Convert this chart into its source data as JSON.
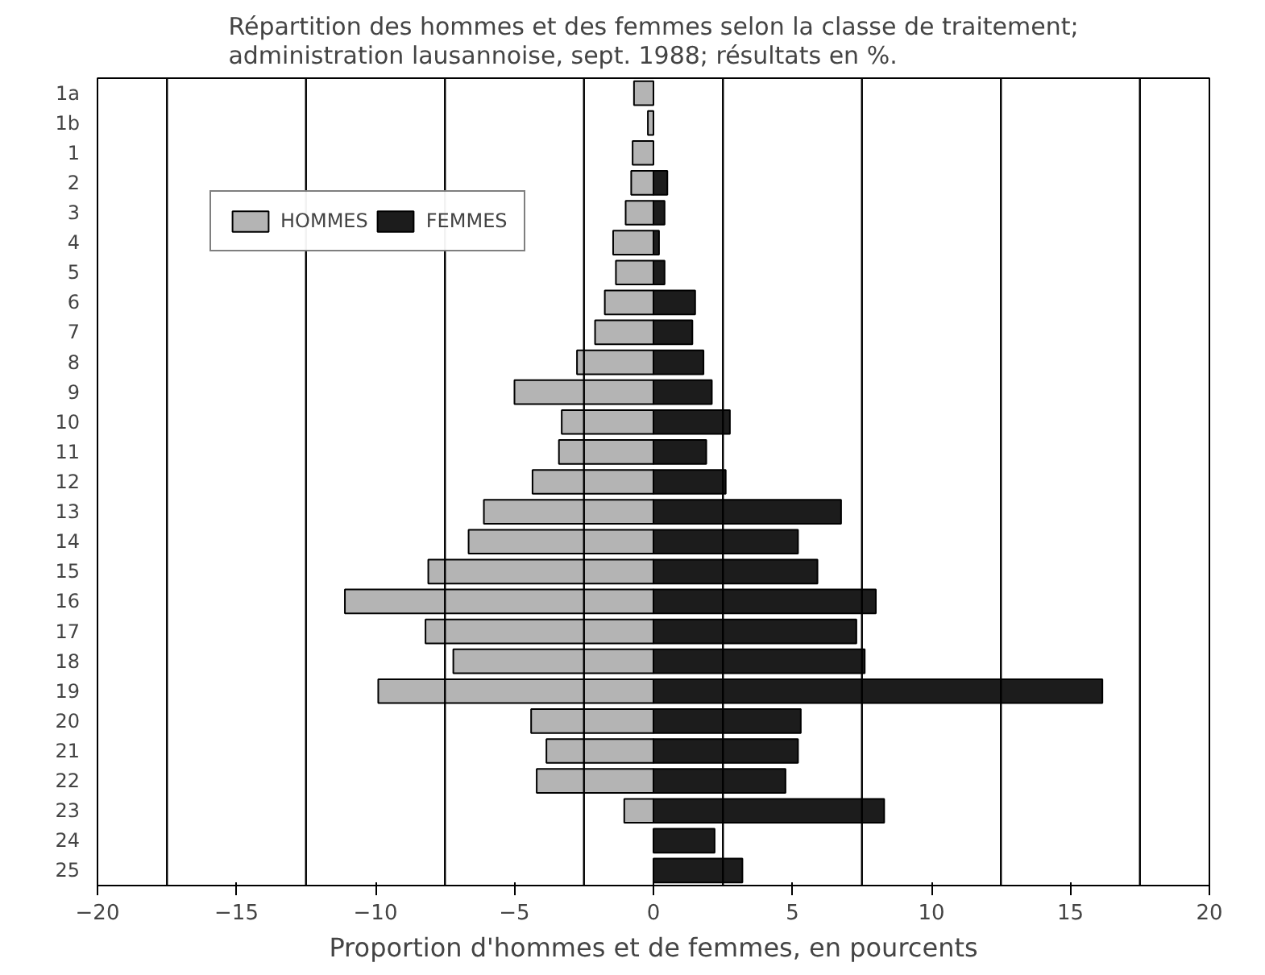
{
  "chart_data": {
    "type": "bar",
    "orientation": "horizontal",
    "title": "Répartition des hommes et des femmes selon la classe de traitement;\nadministration lausannoise, sept. 1988; résultats en %.",
    "xlabel": "Proportion d'hommes et de femmes, en pourcents",
    "categories": [
      "1a",
      "1b",
      "1",
      "2",
      "3",
      "4",
      "5",
      "6",
      "7",
      "8",
      "9",
      "10",
      "11",
      "12",
      "13",
      "14",
      "15",
      "16",
      "17",
      "18",
      "19",
      "20",
      "21",
      "22",
      "23",
      "24",
      "25"
    ],
    "series": [
      {
        "name": "HOMMES",
        "color": "#b4b4b4",
        "values": [
          -0.7,
          -0.2,
          -0.75,
          -0.8,
          -1.0,
          -1.45,
          -1.35,
          -1.75,
          -2.1,
          -2.75,
          -5.0,
          -3.3,
          -3.4,
          -4.35,
          -6.1,
          -6.65,
          -8.1,
          -11.1,
          -8.2,
          -7.2,
          -9.9,
          -4.4,
          -3.85,
          -4.2,
          -1.05,
          null,
          null
        ]
      },
      {
        "name": "FEMMES",
        "color": "#1c1c1c",
        "values": [
          null,
          null,
          null,
          0.5,
          0.4,
          0.2,
          0.4,
          1.5,
          1.4,
          1.8,
          2.1,
          2.75,
          1.9,
          2.6,
          6.75,
          5.2,
          5.9,
          8.0,
          7.3,
          7.6,
          16.15,
          5.3,
          5.2,
          4.75,
          8.3,
          2.2,
          3.2
        ]
      }
    ],
    "xlim": [
      -20,
      20
    ],
    "xticks": [
      -20,
      -15,
      -10,
      -5,
      0,
      5,
      10,
      15,
      20
    ],
    "ref_lines": [
      {
        "axis": "x",
        "value": -17.5
      },
      {
        "axis": "x",
        "value": -12.5
      },
      {
        "axis": "x",
        "value": -7.5
      },
      {
        "axis": "x",
        "value": -2.5
      },
      {
        "axis": "x",
        "value": 2.5
      },
      {
        "axis": "x",
        "value": 7.5
      },
      {
        "axis": "x",
        "value": 12.5
      },
      {
        "axis": "x",
        "value": 17.5
      }
    ],
    "legend": "top left",
    "grid": false,
    "stacked": true
  }
}
